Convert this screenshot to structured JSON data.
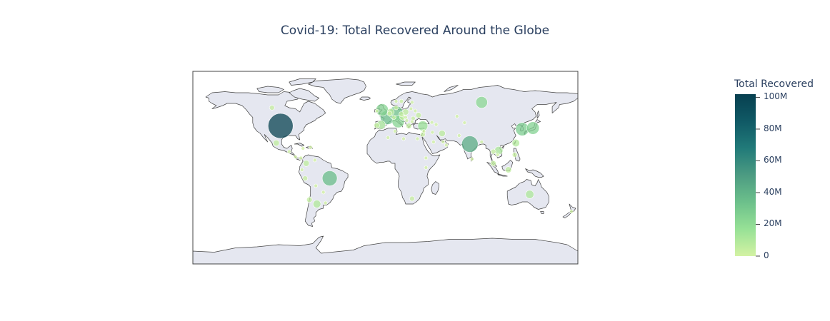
{
  "chart_data": {
    "type": "scatter_geo",
    "title": "Covid-19: Total Recovered Around the Globe",
    "projection": "equirectangular",
    "land_color": "#e5e7f0",
    "ocean_color": "#ffffff",
    "coastline_color": "#444444",
    "colorbar": {
      "title": "Total Recovered",
      "range": [
        0,
        102000000
      ],
      "tickvals": [
        0,
        20000000,
        40000000,
        60000000,
        80000000,
        100000000
      ],
      "ticktext": [
        "0",
        "20M",
        "40M",
        "60M",
        "80M",
        "100M"
      ],
      "colorscale": [
        "#d3f2a3",
        "#97e196",
        "#6cc08b",
        "#4c9b82",
        "#217a79",
        "#105965",
        "#074050"
      ]
    },
    "points": [
      {
        "lon": -98,
        "lat": 39,
        "value": 100000000
      },
      {
        "lon": 79,
        "lat": 22,
        "value": 43000000
      },
      {
        "lon": -52,
        "lat": -10,
        "value": 36000000
      },
      {
        "lon": 2,
        "lat": 47,
        "value": 33000000
      },
      {
        "lon": 10,
        "lat": 51,
        "value": 32000000
      },
      {
        "lon": 90,
        "lat": 61,
        "value": 22000000
      },
      {
        "lon": 128,
        "lat": 36,
        "value": 28000000
      },
      {
        "lon": 138,
        "lat": 37,
        "value": 25000000
      },
      {
        "lon": 12,
        "lat": 43,
        "value": 24000000
      },
      {
        "lon": -3,
        "lat": 54,
        "value": 24000000
      },
      {
        "lon": -4,
        "lat": 40,
        "value": 12000000
      },
      {
        "lon": 35,
        "lat": 39,
        "value": 16000000
      },
      {
        "lon": 106,
        "lat": 16,
        "value": 11000000
      },
      {
        "lon": 135,
        "lat": -25,
        "value": 11000000
      },
      {
        "lon": -64,
        "lat": -34,
        "value": 10000000
      },
      {
        "lon": 19,
        "lat": 52,
        "value": 6000000
      },
      {
        "lon": 31,
        "lat": 49,
        "value": 5000000
      },
      {
        "lon": 53,
        "lat": 32,
        "value": 7000000
      },
      {
        "lon": 115,
        "lat": -2,
        "value": 6000000
      },
      {
        "lon": 122,
        "lat": 23,
        "value": 9000000
      },
      {
        "lon": 5,
        "lat": 52,
        "value": 8000000
      },
      {
        "lon": -102,
        "lat": 23,
        "value": 6000000
      },
      {
        "lon": -74,
        "lat": 4,
        "value": 6000000
      },
      {
        "lon": -75,
        "lat": -10,
        "value": 4000000
      },
      {
        "lon": -71,
        "lat": -30,
        "value": 5000000
      },
      {
        "lon": 101,
        "lat": 4,
        "value": 5000000
      },
      {
        "lon": 25,
        "lat": -29,
        "value": 4000000
      },
      {
        "lon": 22,
        "lat": 39,
        "value": 5000000
      },
      {
        "lon": 16,
        "lat": 47,
        "value": 5000000
      },
      {
        "lon": 26,
        "lat": 46,
        "value": 3000000
      },
      {
        "lon": 15,
        "lat": 50,
        "value": 4000000
      },
      {
        "lon": 121,
        "lat": 12,
        "value": 4000000
      },
      {
        "lon": 101,
        "lat": 15,
        "value": 4000000
      },
      {
        "lon": 8,
        "lat": 47,
        "value": 3000000
      },
      {
        "lon": 10,
        "lat": 56,
        "value": 3000000
      },
      {
        "lon": 35,
        "lat": 31,
        "value": 4000000
      },
      {
        "lon": 4,
        "lat": 50.5,
        "value": 4000000
      },
      {
        "lon": -8,
        "lat": 39.5,
        "value": 5000000
      },
      {
        "lon": 19,
        "lat": 47,
        "value": 2000000
      },
      {
        "lon": 25,
        "lat": 61,
        "value": 1500000
      },
      {
        "lon": -8,
        "lat": 53,
        "value": 1500000
      },
      {
        "lon": 10,
        "lat": 62,
        "value": 1500000
      },
      {
        "lon": 15,
        "lat": 62,
        "value": 2500000
      },
      {
        "lon": 24,
        "lat": 55,
        "value": 1000000
      },
      {
        "lon": 25,
        "lat": 43,
        "value": 1000000
      },
      {
        "lon": 20,
        "lat": 44,
        "value": 2000000
      },
      {
        "lon": 2.5,
        "lat": 28,
        "value": 1000000
      },
      {
        "lon": 30,
        "lat": 27,
        "value": 1000000
      },
      {
        "lon": 67,
        "lat": 48,
        "value": 1500000
      },
      {
        "lon": 69,
        "lat": 30,
        "value": 1500000
      },
      {
        "lon": 45,
        "lat": 24,
        "value": 800000
      },
      {
        "lon": 44,
        "lat": 33,
        "value": 2000000
      },
      {
        "lon": 47.5,
        "lat": 40.3,
        "value": 800000
      },
      {
        "lon": 43.5,
        "lat": 42.3,
        "value": 1500000
      },
      {
        "lon": 74,
        "lat": 42,
        "value": 300000
      },
      {
        "lon": 90,
        "lat": 24,
        "value": 2000000
      },
      {
        "lon": 81,
        "lat": 8,
        "value": 600000
      },
      {
        "lon": 105,
        "lat": 12,
        "value": 400000
      },
      {
        "lon": 174,
        "lat": -41,
        "value": 1500000
      },
      {
        "lon": -79,
        "lat": 9,
        "value": 1000000
      },
      {
        "lon": -84,
        "lat": 10,
        "value": 1000000
      },
      {
        "lon": -90,
        "lat": 15,
        "value": 1000000
      },
      {
        "lon": -70,
        "lat": 19,
        "value": 600000
      },
      {
        "lon": -66,
        "lat": 7,
        "value": 500000
      },
      {
        "lon": -78,
        "lat": -2,
        "value": 1000000
      },
      {
        "lon": -65,
        "lat": -17,
        "value": 1000000
      },
      {
        "lon": -56,
        "lat": -33,
        "value": 1000000
      },
      {
        "lon": -58,
        "lat": -23,
        "value": 700000
      },
      {
        "lon": -77,
        "lat": 18,
        "value": 200000
      },
      {
        "lon": -106,
        "lat": 56,
        "value": 4000000
      },
      {
        "lon": 9,
        "lat": 34,
        "value": 1000000
      },
      {
        "lon": 17,
        "lat": 27,
        "value": 500000
      },
      {
        "lon": 28,
        "lat": 53,
        "value": 1000000
      },
      {
        "lon": 38,
        "lat": 9,
        "value": 500000
      },
      {
        "lon": 38,
        "lat": 0,
        "value": 300000
      },
      {
        "lon": 36,
        "lat": 34,
        "value": 1000000
      },
      {
        "lon": 57,
        "lat": 21,
        "value": 300000
      },
      {
        "lon": 54,
        "lat": 24,
        "value": 1000000
      }
    ]
  }
}
